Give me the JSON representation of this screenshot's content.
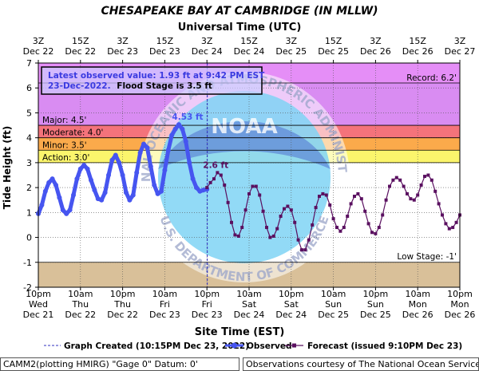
{
  "chart_data": {
    "type": "line",
    "title": "CHESAPEAKE BAY AT CAMBRIDGE (IN MLLW)",
    "top_axis_title": "Universal Time (UTC)",
    "xlabel": "Site Time (EST)",
    "ylabel": "Tide Height (ft)",
    "ylim": [
      -2,
      7
    ],
    "yticks": [
      -2,
      -1,
      0,
      1,
      2,
      3,
      4,
      5,
      6,
      7
    ],
    "grid": true,
    "x_hours_range": [
      0,
      120
    ],
    "bottom_ticks": [
      {
        "h": 0,
        "time": "10pm",
        "day": "Wed",
        "date": "Dec 21"
      },
      {
        "h": 12,
        "time": "10am",
        "day": "Thu",
        "date": "Dec 22"
      },
      {
        "h": 24,
        "time": "10pm",
        "day": "Thu",
        "date": "Dec 22"
      },
      {
        "h": 36,
        "time": "10am",
        "day": "Fri",
        "date": "Dec 23"
      },
      {
        "h": 48,
        "time": "10pm",
        "day": "Fri",
        "date": "Dec 23"
      },
      {
        "h": 60,
        "time": "10am",
        "day": "Sat",
        "date": "Dec 24"
      },
      {
        "h": 72,
        "time": "10pm",
        "day": "Sat",
        "date": "Dec 24"
      },
      {
        "h": 84,
        "time": "10am",
        "day": "Sun",
        "date": "Dec 25"
      },
      {
        "h": 96,
        "time": "10pm",
        "day": "Sun",
        "date": "Dec 25"
      },
      {
        "h": 108,
        "time": "10am",
        "day": "Mon",
        "date": "Dec 26"
      },
      {
        "h": 120,
        "time": "10pm",
        "day": "Mon",
        "date": "Dec 26"
      }
    ],
    "top_ticks": [
      {
        "h": 0,
        "time": "3Z",
        "date": "Dec 22"
      },
      {
        "h": 12,
        "time": "15Z",
        "date": "Dec 22"
      },
      {
        "h": 24,
        "time": "3Z",
        "date": "Dec 23"
      },
      {
        "h": 36,
        "time": "15Z",
        "date": "Dec 23"
      },
      {
        "h": 48,
        "time": "3Z",
        "date": "Dec 24"
      },
      {
        "h": 60,
        "time": "15Z",
        "date": "Dec 24"
      },
      {
        "h": 72,
        "time": "3Z",
        "date": "Dec 25"
      },
      {
        "h": 84,
        "time": "15Z",
        "date": "Dec 25"
      },
      {
        "h": 96,
        "time": "3Z",
        "date": "Dec 26"
      },
      {
        "h": 108,
        "time": "15Z",
        "date": "Dec 26"
      },
      {
        "h": 120,
        "time": "3Z",
        "date": "Dec 27"
      }
    ],
    "stage_bands": [
      {
        "name": "Record",
        "from": 6.2,
        "to": 7,
        "color": "#e58ef7"
      },
      {
        "name": "Major",
        "from": 4.5,
        "to": 6.2,
        "color": "#d98cf2"
      },
      {
        "name": "Moderate",
        "from": 4.0,
        "to": 4.5,
        "color": "#f4737b"
      },
      {
        "name": "Minor",
        "from": 3.5,
        "to": 4.0,
        "color": "#fbaa4b"
      },
      {
        "name": "Action",
        "from": 3.0,
        "to": 3.5,
        "color": "#fbf56c"
      },
      {
        "name": "Normal",
        "from": -1,
        "to": 3.0,
        "color": "#ffffff"
      },
      {
        "name": "Low",
        "from": -2,
        "to": -1,
        "color": "#d9c099"
      }
    ],
    "stage_labels": [
      {
        "text": "Major: 4.5'",
        "y": 4.5
      },
      {
        "text": "Moderate: 4.0'",
        "y": 4.0
      },
      {
        "text": "Minor: 3.5'",
        "y": 3.5
      },
      {
        "text": "Action: 3.0'",
        "y": 3.0
      }
    ],
    "record_label": {
      "text": "Record: 6.2'",
      "y": 6.2
    },
    "low_label": {
      "text": "Low Stage: -1'",
      "y": -1
    },
    "graph_created_h": 48.1,
    "info_box": {
      "line1": "Latest observed value: 1.93 ft at 9:42 PM EST",
      "line2_date": "23-Dec-2022.",
      "line2_stage": "Flood Stage is 3.5 ft"
    },
    "annotations": [
      {
        "text": "4.53 ft",
        "h": 42.5,
        "y": 4.53
      },
      {
        "text": "2.6 ft",
        "h": 50.5,
        "y": 2.6
      }
    ],
    "series": [
      {
        "name": "Observed",
        "color": "#4655f0",
        "x": [
          0,
          1,
          2,
          3,
          4,
          5,
          6,
          7,
          8,
          9,
          10,
          11,
          12,
          13,
          14,
          15,
          16,
          17,
          18,
          19,
          20,
          21,
          22,
          23,
          24,
          25,
          26,
          27,
          28,
          29,
          30,
          31,
          32,
          33,
          34,
          35,
          36,
          37,
          38,
          39,
          40,
          41,
          42,
          43,
          44,
          45,
          46,
          47,
          48
        ],
        "y": [
          0.95,
          1.3,
          1.85,
          2.2,
          2.35,
          2.1,
          1.6,
          1.1,
          0.95,
          1.1,
          1.7,
          2.35,
          2.75,
          2.9,
          2.75,
          2.3,
          1.9,
          1.55,
          1.5,
          1.8,
          2.5,
          3.1,
          3.3,
          3.0,
          2.5,
          1.8,
          1.5,
          1.7,
          2.6,
          3.4,
          3.75,
          3.6,
          2.85,
          2.1,
          1.75,
          1.85,
          2.7,
          3.5,
          4.1,
          4.35,
          4.53,
          4.35,
          3.85,
          3.0,
          2.35,
          2.0,
          1.85,
          1.9,
          1.93
        ]
      },
      {
        "name": "Forecast (issued 9:10PM Dec 23)",
        "color": "#5a1060",
        "x": [
          48,
          49,
          50,
          51,
          52,
          53,
          54,
          55,
          56,
          57,
          58,
          59,
          60,
          61,
          62,
          63,
          64,
          65,
          66,
          67,
          68,
          69,
          70,
          71,
          72,
          73,
          74,
          75,
          76,
          77,
          78,
          79,
          80,
          81,
          82,
          83,
          84,
          85,
          86,
          87,
          88,
          89,
          90,
          91,
          92,
          93,
          94,
          95,
          96,
          97,
          98,
          99,
          100,
          101,
          102,
          103,
          104,
          105,
          106,
          107,
          108,
          109,
          110,
          111,
          112,
          113,
          114,
          115,
          116,
          117,
          118,
          119,
          120
        ],
        "y": [
          2.0,
          2.2,
          2.35,
          2.6,
          2.5,
          2.1,
          1.4,
          0.6,
          0.1,
          0.05,
          0.4,
          1.1,
          1.75,
          2.05,
          2.05,
          1.7,
          1.05,
          0.4,
          0.0,
          0.05,
          0.35,
          0.85,
          1.15,
          1.25,
          1.1,
          0.6,
          -0.1,
          -0.5,
          -0.5,
          -0.1,
          0.5,
          1.2,
          1.65,
          1.75,
          1.7,
          1.3,
          0.75,
          0.4,
          0.25,
          0.4,
          0.85,
          1.35,
          1.65,
          1.75,
          1.55,
          1.05,
          0.55,
          0.2,
          0.15,
          0.4,
          0.9,
          1.5,
          2.05,
          2.3,
          2.4,
          2.3,
          2.05,
          1.75,
          1.55,
          1.5,
          1.7,
          2.1,
          2.45,
          2.5,
          2.3,
          1.85,
          1.35,
          0.9,
          0.55,
          0.35,
          0.4,
          0.6,
          0.9
        ]
      }
    ],
    "legend": {
      "created": "Graph Created (10:15PM Dec 23, 2022)",
      "observed": "Observed",
      "forecast": "Forecast (issued 9:10PM Dec 23)"
    },
    "watermark": {
      "top": "NATIONAL OCEANIC AND ATMOSPHERIC ADMINISTRATION",
      "bottom": "U.S. DEPARTMENT OF COMMERCE",
      "center": "NOAA"
    }
  },
  "footer": {
    "station": "CAMM2(plotting HMIRG) \"Gage 0\" Datum: 0'",
    "credit": "Observations courtesy of The National Ocean Service"
  }
}
